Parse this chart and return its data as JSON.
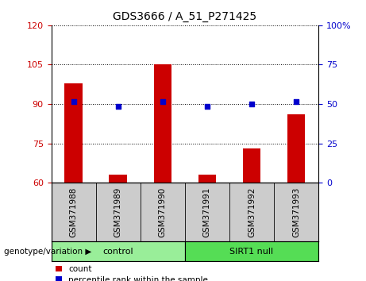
{
  "title": "GDS3666 / A_51_P271425",
  "samples": [
    "GSM371988",
    "GSM371989",
    "GSM371990",
    "GSM371991",
    "GSM371992",
    "GSM371993"
  ],
  "bar_values": [
    98,
    63,
    105,
    63,
    73,
    86
  ],
  "percentile_values": [
    91,
    89,
    91,
    89,
    90,
    91
  ],
  "bar_color": "#cc0000",
  "dot_color": "#0000cc",
  "ylim_left": [
    60,
    120
  ],
  "ylim_right": [
    0,
    100
  ],
  "yticks_left": [
    60,
    75,
    90,
    105,
    120
  ],
  "yticks_right": [
    0,
    25,
    50,
    75,
    100
  ],
  "groups": [
    {
      "label": "control",
      "start": 0,
      "end": 3,
      "color": "#99ee99"
    },
    {
      "label": "SIRT1 null",
      "start": 3,
      "end": 6,
      "color": "#55dd55"
    }
  ],
  "group_label_prefix": "genotype/variation",
  "legend_count_label": "count",
  "legend_pct_label": "percentile rank within the sample",
  "bar_width": 0.4,
  "background_color": "#ffffff",
  "plot_bg_color": "#ffffff",
  "tick_label_area_color": "#cccccc",
  "dotted_grid_color": "#000000",
  "right_tick_labels": [
    "0",
    "25",
    "50",
    "75",
    "100%"
  ]
}
